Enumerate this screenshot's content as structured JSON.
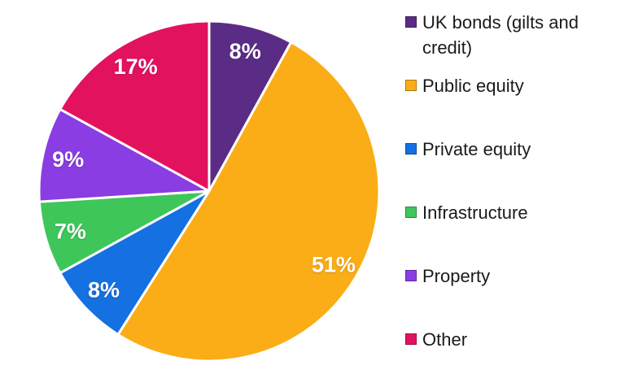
{
  "chart_data": {
    "type": "pie",
    "title": "",
    "start_angle_deg": 0,
    "direction": "clockwise",
    "legend_position": "right",
    "background_color": "#FFFFFF",
    "data_label_color": "#FFFFFF",
    "legend_text_color": "#1A1A1A",
    "slice_gap_color": "#FFFFFF",
    "slices": [
      {
        "label": "UK bonds (gilts and credit)",
        "value": 8,
        "data_label": "8%",
        "color": "#5B2C86"
      },
      {
        "label": "Public equity",
        "value": 51,
        "data_label": "51%",
        "color": "#FBAD17"
      },
      {
        "label": "Private equity",
        "value": 8,
        "data_label": "8%",
        "color": "#1570E2"
      },
      {
        "label": "Infrastructure",
        "value": 7,
        "data_label": "7%",
        "color": "#3EC65B"
      },
      {
        "label": "Property",
        "value": 9,
        "data_label": "9%",
        "color": "#8A3DE2"
      },
      {
        "label": "Other",
        "value": 17,
        "data_label": "17%",
        "color": "#E3125F"
      }
    ]
  }
}
